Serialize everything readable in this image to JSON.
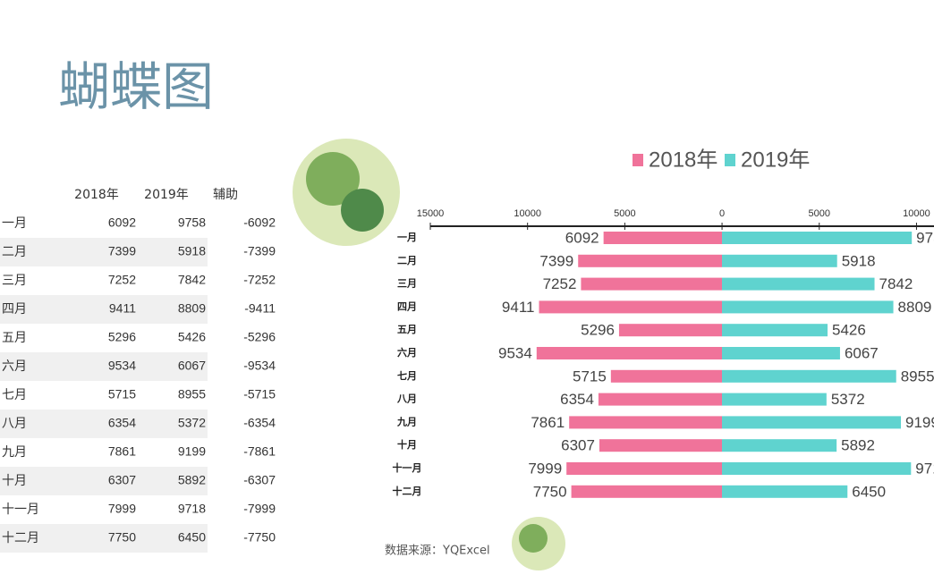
{
  "title": "蝴蝶图",
  "table": {
    "columns": [
      "2018年",
      "2019年",
      "辅助"
    ],
    "rows": [
      [
        "一月",
        6092,
        9758,
        -6092
      ],
      [
        "二月",
        7399,
        5918,
        -7399
      ],
      [
        "三月",
        7252,
        7842,
        -7252
      ],
      [
        "四月",
        9411,
        8809,
        -9411
      ],
      [
        "五月",
        5296,
        5426,
        -5296
      ],
      [
        "六月",
        9534,
        6067,
        -9534
      ],
      [
        "七月",
        5715,
        8955,
        -5715
      ],
      [
        "八月",
        6354,
        5372,
        -6354
      ],
      [
        "九月",
        7861,
        9199,
        -7861
      ],
      [
        "十月",
        6307,
        5892,
        -6307
      ],
      [
        "十一月",
        7999,
        9718,
        -7999
      ],
      [
        "十二月",
        7750,
        6450,
        -7750
      ]
    ]
  },
  "chart_data": {
    "type": "butterfly",
    "categories": [
      "一月",
      "二月",
      "三月",
      "四月",
      "五月",
      "六月",
      "七月",
      "八月",
      "九月",
      "十月",
      "十一月",
      "十二月"
    ],
    "series": [
      {
        "name": "2018年",
        "color": "#f0739a",
        "values": [
          6092,
          7399,
          7252,
          9411,
          5296,
          9534,
          5715,
          6354,
          7861,
          6307,
          7999,
          7750
        ]
      },
      {
        "name": "2019年",
        "color": "#5fd3cf",
        "values": [
          9758,
          5918,
          7842,
          8809,
          5426,
          6067,
          8955,
          5372,
          9199,
          5892,
          9718,
          6450
        ]
      }
    ],
    "xlim": [
      -15000,
      10900
    ],
    "xticks": [
      {
        "value": -15000,
        "label": "15000"
      },
      {
        "value": -10000,
        "label": "10000"
      },
      {
        "value": -5000,
        "label": "5000"
      },
      0,
      5000,
      10000
    ]
  },
  "source": "数据来源：YQExcel"
}
